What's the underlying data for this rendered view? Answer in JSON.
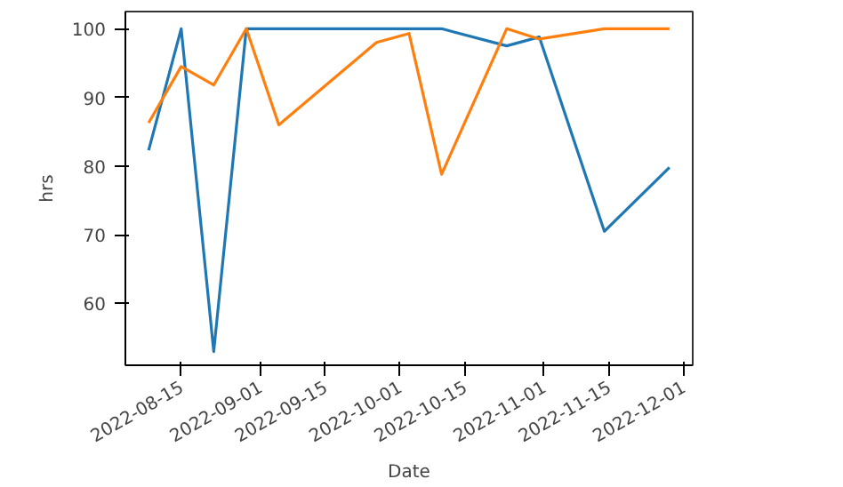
{
  "chart_data": {
    "type": "line",
    "xlabel": "Date",
    "ylabel": "hrs",
    "xlim": [
      "2022-08-03",
      "2022-12-03"
    ],
    "ylim": [
      51,
      102.5
    ],
    "xticks": [
      "2022-08-15",
      "2022-09-01",
      "2022-09-15",
      "2022-10-01",
      "2022-10-15",
      "2022-11-01",
      "2022-11-15",
      "2022-12-01"
    ],
    "yticks": [
      60,
      70,
      80,
      90,
      100
    ],
    "grid": false,
    "series": [
      {
        "color": "#1f77b4",
        "x": [
          "2022-08-08",
          "2022-08-15",
          "2022-08-22",
          "2022-08-29",
          "2022-10-10",
          "2022-10-24",
          "2022-10-31",
          "2022-11-14",
          "2022-11-28"
        ],
        "values": [
          82.3,
          100,
          53,
          100,
          100,
          97.5,
          98.8,
          70.5,
          79.8
        ]
      },
      {
        "color": "#ff7f0e",
        "x": [
          "2022-08-08",
          "2022-08-15",
          "2022-08-22",
          "2022-08-29",
          "2022-09-05",
          "2022-09-26",
          "2022-10-03",
          "2022-10-10",
          "2022-10-24",
          "2022-10-31",
          "2022-11-14",
          "2022-11-28"
        ],
        "values": [
          86.3,
          94.5,
          91.8,
          100,
          86,
          98,
          99.3,
          78.8,
          100,
          98.5,
          100,
          100
        ]
      }
    ]
  }
}
